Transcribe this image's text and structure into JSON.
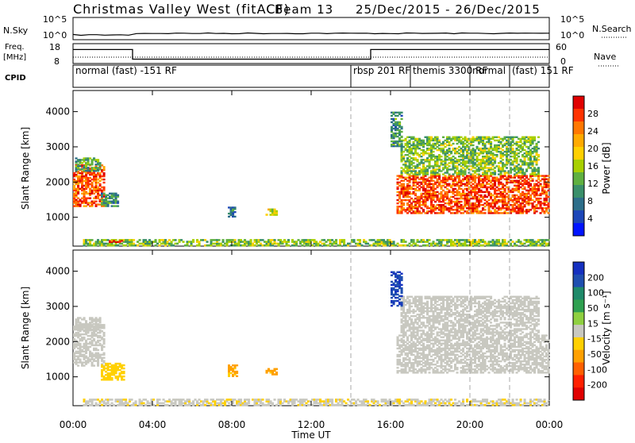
{
  "title": "Christmas Valley West (fitACF)",
  "beam": "Beam 13",
  "date_range": "25/Dec/2015 - 26/Dec/2015",
  "top_panels": {
    "nsky_label": "N.Sky",
    "nsearch_label": "N.Search",
    "freq_label_1": "Freq.",
    "freq_label_2": "[MHz]",
    "nave_label": "Nave",
    "cpid_label": "CPID",
    "nsky_ticks": [
      "10^5",
      "10^0"
    ],
    "nsearch_ticks": [
      "10^5",
      "10^0"
    ],
    "freq_ticks": [
      "18",
      "8"
    ],
    "nave_ticks": [
      "60",
      "0"
    ]
  },
  "cpid_segments": [
    {
      "label": "normal (fast) -151 RF",
      "start": 0,
      "end": 14.0
    },
    {
      "label": "rbsp 201 RF",
      "start": 14.0,
      "end": 17.0
    },
    {
      "label": "themis 3300 RF",
      "start": 17.0,
      "end": 20.0
    },
    {
      "label": "normal",
      "start": 20.0,
      "end": 22.0
    },
    {
      "label": "(fast) 151 RF",
      "start": 22.0,
      "end": 24.0
    }
  ],
  "ylabel": "Slant Range [km]",
  "xlabel": "Time UT",
  "x_ticks": [
    "00:00",
    "04:00",
    "08:00",
    "12:00",
    "16:00",
    "20:00",
    "00:00"
  ],
  "y_ticks": [
    "1000",
    "2000",
    "3000",
    "4000"
  ],
  "power_colorbar": {
    "label": "Power [dB]",
    "ticks": [
      "28",
      "24",
      "20",
      "16",
      "12",
      "8",
      "4"
    ],
    "colors": [
      "#e00000",
      "#ff3300",
      "#ff7700",
      "#ffaa00",
      "#ffd000",
      "#a8d000",
      "#5fb040",
      "#3a8f6a",
      "#2d6e8a",
      "#1c46b8",
      "#0014ff"
    ]
  },
  "velocity_colorbar": {
    "label": "Velocity [m s⁻¹]",
    "ticks": [
      "200",
      "100",
      "50",
      "15",
      "-15",
      "-50",
      "-100",
      "-200"
    ],
    "colors": [
      "#1530c0",
      "#1f4fb0",
      "#1f8a6a",
      "#2fa050",
      "#8fd040",
      "#c8c8c0",
      "#ffd000",
      "#ffa000",
      "#ff6000",
      "#ff2000",
      "#e00000"
    ]
  },
  "chart_data": [
    {
      "type": "heatmap",
      "title": "Power",
      "xlabel": "Time UT",
      "ylabel": "Slant Range [km]",
      "xlim": [
        0,
        24
      ],
      "ylim": [
        180,
        4600
      ],
      "units": "dB",
      "regions": [
        {
          "t": [
            0.0,
            1.6
          ],
          "range": [
            1300,
            2500
          ],
          "value": 26
        },
        {
          "t": [
            0.1,
            1.4
          ],
          "range": [
            2300,
            2700
          ],
          "value": 12
        },
        {
          "t": [
            1.4,
            2.3
          ],
          "range": [
            1300,
            1700
          ],
          "value": 10
        },
        {
          "t": [
            0.5,
            24.0
          ],
          "range": [
            180,
            380
          ],
          "value": 14
        },
        {
          "t": [
            1.8,
            2.5
          ],
          "range": [
            280,
            350
          ],
          "value": 28
        },
        {
          "t": [
            7.8,
            8.2
          ],
          "range": [
            1000,
            1300
          ],
          "value": 8
        },
        {
          "t": [
            9.7,
            10.3
          ],
          "range": [
            1050,
            1250
          ],
          "value": 18
        },
        {
          "t": [
            16.3,
            24.0
          ],
          "range": [
            1100,
            2200
          ],
          "value": 27
        },
        {
          "t": [
            16.5,
            23.5
          ],
          "range": [
            2200,
            3300
          ],
          "value": 14
        },
        {
          "t": [
            16.0,
            16.6
          ],
          "range": [
            3000,
            4000
          ],
          "value": 10
        }
      ],
      "markers": [
        14.0,
        20.0,
        22.0
      ]
    },
    {
      "type": "heatmap",
      "title": "Velocity",
      "xlabel": "Time UT",
      "ylabel": "Slant Range [km]",
      "xlim": [
        0,
        24
      ],
      "ylim": [
        180,
        4600
      ],
      "units": "m s-1",
      "regions": [
        {
          "t": [
            0.0,
            1.6
          ],
          "range": [
            1300,
            2500
          ],
          "value": 0
        },
        {
          "t": [
            0.1,
            1.4
          ],
          "range": [
            2300,
            2700
          ],
          "value": 0
        },
        {
          "t": [
            1.4,
            2.6
          ],
          "range": [
            900,
            1400
          ],
          "value": -40
        },
        {
          "t": [
            0.5,
            24.0
          ],
          "range": [
            180,
            380
          ],
          "value": -15
        },
        {
          "t": [
            7.8,
            8.3
          ],
          "range": [
            1000,
            1350
          ],
          "value": -80
        },
        {
          "t": [
            9.7,
            10.3
          ],
          "range": [
            1050,
            1250
          ],
          "value": -80
        },
        {
          "t": [
            16.3,
            24.0
          ],
          "range": [
            1100,
            2200
          ],
          "value": 0
        },
        {
          "t": [
            16.5,
            23.5
          ],
          "range": [
            2200,
            3300
          ],
          "value": 0
        },
        {
          "t": [
            16.0,
            16.6
          ],
          "range": [
            3000,
            4000
          ],
          "value": 200
        }
      ],
      "markers": [
        14.0,
        20.0,
        22.0
      ]
    }
  ],
  "freq_series": {
    "name": "Freq.",
    "t": [
      0,
      3.0,
      3.0,
      15.0,
      15.0,
      24
    ],
    "value": [
      16,
      16,
      10.5,
      10.5,
      16,
      16
    ]
  }
}
